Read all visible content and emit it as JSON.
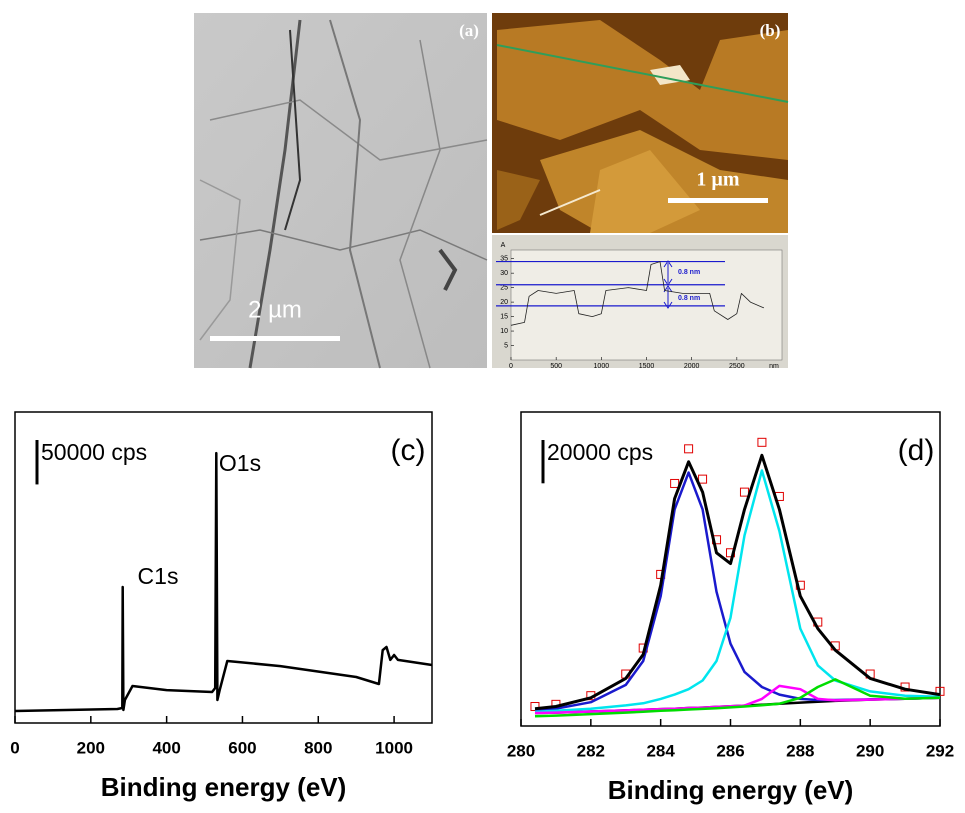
{
  "panels": {
    "a": {
      "label": "(a)",
      "scale_label": "2 µm"
    },
    "b": {
      "label": "(b)",
      "scale_label": "1 µm"
    }
  },
  "chart_data": [
    {
      "type": "line",
      "x_unit": "nm",
      "y_unit": "A",
      "x": [
        0,
        150,
        200,
        300,
        500,
        700,
        750,
        900,
        1000,
        1050,
        1300,
        1500,
        1550,
        1650,
        1700,
        1900,
        2200,
        2250,
        2400,
        2500,
        2550,
        2650,
        2800
      ],
      "series": [
        {
          "color": "#222222",
          "values": [
            12,
            13,
            22,
            24,
            23,
            24,
            16,
            15,
            16,
            24,
            25,
            24,
            33,
            34,
            24,
            23,
            23,
            17,
            14,
            16,
            23,
            20,
            18
          ]
        }
      ],
      "xlim": [
        0,
        3000
      ],
      "ylim": [
        0,
        38
      ],
      "xticks": [
        0,
        500,
        1000,
        1500,
        2000,
        2500
      ],
      "yticks": [
        5,
        10,
        15,
        20,
        25,
        30,
        35
      ],
      "ref_lines": [
        34,
        26,
        18.7
      ],
      "ref_color": "#1a1acd",
      "annotations": [
        "0.8 nm",
        "0.8 nm"
      ]
    },
    {
      "type": "line",
      "panel_label": "(c)",
      "xlabel": "Binding energy (eV)",
      "x": [
        0,
        270,
        283,
        284,
        286,
        290,
        310,
        400,
        520,
        528,
        531,
        534,
        540,
        560,
        700,
        900,
        960,
        970,
        980,
        990,
        1000,
        1010,
        1100
      ],
      "series": [
        {
          "color": "#000000",
          "values": [
            13500,
            15750,
            16900,
            153000,
            14600,
            25900,
            41600,
            37000,
            34900,
            39400,
            303750,
            25900,
            37000,
            69750,
            64000,
            51750,
            43900,
            82000,
            85500,
            71000,
            76500,
            71000,
            65250
          ]
        }
      ],
      "xlim": [
        0,
        1100
      ],
      "ylim": [
        0,
        350000
      ],
      "xticks": [
        0,
        200,
        400,
        600,
        800,
        1000
      ],
      "scale_bar": {
        "value": 50000,
        "label": "50000 cps"
      },
      "annotations": [
        "C1s",
        "O1s"
      ]
    },
    {
      "type": "line",
      "panel_label": "(d)",
      "xlabel": "Binding energy (eV)",
      "x": [
        280.4,
        281,
        282,
        283,
        283.5,
        284,
        284.4,
        284.8,
        285.2,
        285.6,
        286,
        286.4,
        286.9,
        287.4,
        288,
        288.5,
        289,
        290,
        291,
        292
      ],
      "series": [
        {
          "color": "#e00000",
          "marker": "square",
          "values": [
            9000,
            10000,
            14000,
            24000,
            36000,
            70000,
            112000,
            128000,
            114000,
            86000,
            80000,
            108000,
            131000,
            106000,
            65000,
            48000,
            37000,
            24000,
            18000,
            16000
          ]
        },
        {
          "color": "#000000",
          "values": [
            6000,
            6200,
            6700,
            7200,
            7500,
            7800,
            8000,
            8300,
            8500,
            8800,
            9100,
            9400,
            9800,
            10300,
            10800,
            11200,
            11600,
            12200,
            12600,
            13000
          ]
        },
        {
          "color": "#1a1acd",
          "values": [
            7000,
            8000,
            11000,
            19000,
            30000,
            60000,
            100000,
            117000,
            100000,
            62000,
            38000,
            25000,
            18000,
            14500,
            12500,
            12000,
            12000,
            12300,
            12600,
            13000
          ]
        },
        {
          "color": "#00e5ee",
          "values": [
            6500,
            7000,
            8000,
            9500,
            10500,
            12500,
            14500,
            17000,
            21000,
            30000,
            50000,
            88000,
            118000,
            90000,
            45000,
            28000,
            21000,
            16000,
            14000,
            13500
          ]
        },
        {
          "color": "#ff00ff",
          "values": [
            6000,
            6200,
            6700,
            7200,
            7500,
            7800,
            8000,
            8300,
            8500,
            8800,
            9100,
            9400,
            12500,
            18500,
            17000,
            12500,
            11800,
            12200,
            12600,
            13000
          ]
        },
        {
          "color": "#00dd00",
          "values": [
            4500,
            4800,
            5500,
            6200,
            6600,
            7000,
            7300,
            7600,
            7900,
            8200,
            8600,
            9000,
            9600,
            10300,
            13000,
            18000,
            21500,
            14000,
            12600,
            13000
          ]
        },
        {
          "color": "#000000",
          "width": 3,
          "values": [
            8000,
            9000,
            13000,
            22000,
            33000,
            65000,
            105000,
            122000,
            108000,
            80000,
            75000,
            100000,
            125000,
            100000,
            60000,
            45000,
            35000,
            22000,
            17000,
            14500
          ]
        }
      ],
      "xlim": [
        280,
        292
      ],
      "ylim": [
        0,
        145000
      ],
      "xticks": [
        280,
        282,
        284,
        286,
        288,
        290,
        292
      ],
      "scale_bar": {
        "value": 20000,
        "label": "20000 cps"
      }
    }
  ]
}
